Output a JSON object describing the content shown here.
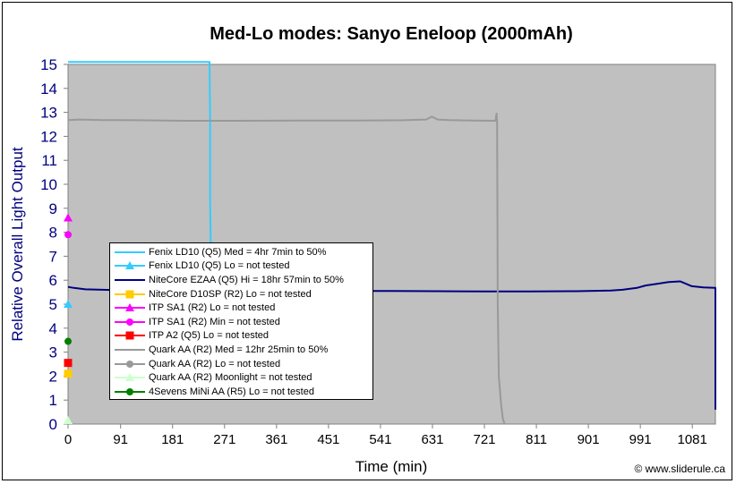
{
  "chart_data": {
    "type": "line",
    "title": "Med-Lo modes: Sanyo Eneloop (2000mAh)",
    "xlabel": "Time (min)",
    "ylabel": "Relative Overall Light Output",
    "xlim": [
      0,
      1121
    ],
    "ylim": [
      0,
      15
    ],
    "x_ticks": [
      "0",
      "91",
      "181",
      "271",
      "361",
      "451",
      "541",
      "631",
      "721",
      "811",
      "901",
      "991",
      "1081"
    ],
    "y_ticks": [
      "0",
      "1",
      "2",
      "3",
      "4",
      "5",
      "6",
      "7",
      "8",
      "9",
      "10",
      "11",
      "12",
      "13",
      "14",
      "15"
    ],
    "grid": false,
    "plot_background": "#c0c0c0",
    "legend_position": "lower-left inside plot",
    "credit": "© www.sliderule.ca",
    "series": [
      {
        "name": "Fenix LD10 (Q5) Med = 4hr 7min to 50%",
        "color": "#33ccff",
        "marker": "none",
        "x": [
          0,
          245,
          246,
          246,
          247,
          249
        ],
        "y": [
          15.1,
          15.1,
          12.7,
          9.2,
          7.6,
          7.5
        ]
      },
      {
        "name": "Fenix LD10 (Q5) Lo = not tested",
        "color": "#33ccff",
        "marker": "triangle",
        "x": [
          0
        ],
        "y": [
          5.0
        ]
      },
      {
        "name": "NiteCore EZAA (Q5) Hi = 18hr 57min to 50%",
        "color": "#000080",
        "marker": "none",
        "x": [
          0,
          10,
          30,
          60,
          100,
          150,
          200,
          260,
          320,
          400,
          480,
          560,
          640,
          720,
          800,
          880,
          940,
          960,
          985,
          1000,
          1020,
          1040,
          1060,
          1080,
          1100,
          1125,
          1128,
          1129,
          1131,
          1135
        ],
        "y": [
          5.72,
          5.68,
          5.62,
          5.6,
          5.58,
          5.57,
          5.57,
          5.56,
          5.55,
          5.55,
          5.55,
          5.55,
          5.54,
          5.53,
          5.53,
          5.54,
          5.57,
          5.6,
          5.68,
          5.78,
          5.85,
          5.92,
          5.95,
          5.75,
          5.7,
          5.68,
          5.0,
          3.5,
          1.8,
          0.6
        ]
      },
      {
        "name": "NiteCore D10SP (R2) Lo = not tested",
        "color": "#ffcc00",
        "marker": "square",
        "x": [
          0
        ],
        "y": [
          2.1
        ]
      },
      {
        "name": "ITP SA1 (R2) Lo = not tested",
        "color": "#ff00ff",
        "marker": "triangle",
        "x": [
          0
        ],
        "y": [
          8.6
        ]
      },
      {
        "name": "ITP SA1 (R2) Min = not tested",
        "color": "#ff00ff",
        "marker": "circle",
        "x": [
          0
        ],
        "y": [
          7.9
        ]
      },
      {
        "name": "ITP A2 (Q5) Lo = not tested",
        "color": "#ff0000",
        "marker": "square",
        "x": [
          0
        ],
        "y": [
          2.55
        ]
      },
      {
        "name": "Quark AA (R2) Med = 12hr 25min to 50%",
        "color": "#999999",
        "marker": "none",
        "x": [
          0,
          20,
          60,
          120,
          200,
          300,
          400,
          500,
          580,
          620,
          630,
          640,
          660,
          700,
          740,
          742,
          743,
          744,
          746,
          750,
          753,
          756
        ],
        "y": [
          12.68,
          12.7,
          12.68,
          12.67,
          12.65,
          12.65,
          12.66,
          12.66,
          12.67,
          12.7,
          12.82,
          12.7,
          12.68,
          12.66,
          12.65,
          12.95,
          12.6,
          5.0,
          2.0,
          0.8,
          0.2,
          0.0
        ]
      },
      {
        "name": "Quark AA (R2) Lo = not tested",
        "color": "#999999",
        "marker": "circle",
        "x": [],
        "y": []
      },
      {
        "name": "Quark AA (R2) Moonlight = not tested",
        "color": "#ccffcc",
        "marker": "triangle",
        "x": [
          0
        ],
        "y": [
          0.15
        ]
      },
      {
        "name": "4Sevens MiNi AA (R5) Lo = not tested",
        "color": "#008000",
        "marker": "circle",
        "x": [
          0
        ],
        "y": [
          3.45
        ]
      }
    ]
  }
}
